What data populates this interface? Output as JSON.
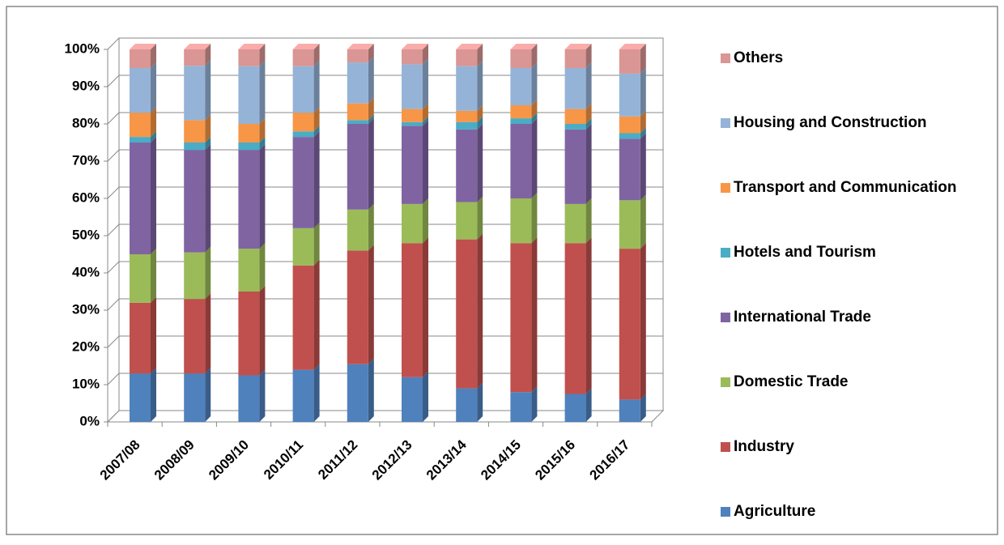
{
  "chart_data": {
    "type": "bar3d-stacked-percent",
    "categories": [
      "2007/08",
      "2008/09",
      "2009/10",
      "2010/11",
      "2011/12",
      "2012/13",
      "2013/14",
      "2014/15",
      "2015/16",
      "2016/17"
    ],
    "series": [
      {
        "name": "Agriculture",
        "color": "#4f81bd",
        "values": [
          13,
          13,
          12.5,
          14,
          15.5,
          12,
          9,
          8,
          7.5,
          6
        ]
      },
      {
        "name": "Industry",
        "color": "#c0504d",
        "values": [
          19,
          20,
          22.5,
          28,
          30.5,
          36,
          40,
          40,
          40.5,
          40.5
        ]
      },
      {
        "name": "Domestic Trade",
        "color": "#9bbb59",
        "values": [
          13,
          12.5,
          11.5,
          10,
          11,
          10.5,
          10,
          12,
          10.5,
          13
        ]
      },
      {
        "name": "International Trade",
        "color": "#8064a2",
        "values": [
          30,
          27.5,
          26.5,
          24.5,
          23,
          21,
          19.5,
          20,
          20,
          16.5
        ]
      },
      {
        "name": "Hotels and Tourism",
        "color": "#4bacc6",
        "values": [
          1.5,
          2,
          2,
          1.5,
          1,
          1,
          2,
          1.5,
          1.5,
          1.5
        ]
      },
      {
        "name": "Transport and Communication",
        "color": "#f79646",
        "values": [
          6.5,
          6,
          5,
          5,
          4.5,
          3.5,
          3,
          3.5,
          4,
          4.5
        ]
      },
      {
        "name": "Housing and Construction",
        "color": "#95b3d7",
        "values": [
          12,
          14.6,
          15.5,
          12.5,
          11,
          12,
          12,
          10,
          11,
          11.5
        ]
      },
      {
        "name": "Others",
        "color": "#d99694",
        "values": [
          5,
          4.4,
          4.5,
          4.5,
          3.5,
          4,
          4.5,
          5,
          5,
          6.5
        ]
      }
    ],
    "ylim": [
      0,
      100
    ],
    "yticks": [
      {
        "value": 0,
        "label": "0%"
      },
      {
        "value": 10,
        "label": "10%"
      },
      {
        "value": 20,
        "label": "20%"
      },
      {
        "value": 30,
        "label": "30%"
      },
      {
        "value": 40,
        "label": "40%"
      },
      {
        "value": 50,
        "label": "50%"
      },
      {
        "value": 60,
        "label": "60%"
      },
      {
        "value": 70,
        "label": "70%"
      },
      {
        "value": 80,
        "label": "80%"
      },
      {
        "value": 90,
        "label": "90%"
      },
      {
        "value": 100,
        "label": "100%"
      }
    ],
    "grid": true,
    "legend": "right"
  }
}
